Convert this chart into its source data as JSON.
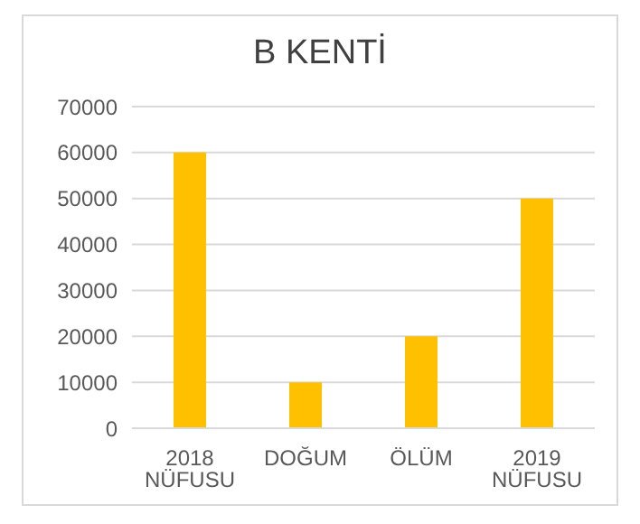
{
  "chart_data": {
    "type": "bar",
    "title": "B KENTİ",
    "categories": [
      "2018 NÜFUSU",
      "DOĞUM",
      "ÖLÜM",
      "2019 NÜFUSU"
    ],
    "values": [
      60000,
      10000,
      20000,
      50000
    ],
    "color": "#ffc000",
    "ylim": [
      0,
      70000
    ],
    "yticks": [
      0,
      10000,
      20000,
      30000,
      40000,
      50000,
      60000,
      70000
    ],
    "grid": "y"
  }
}
